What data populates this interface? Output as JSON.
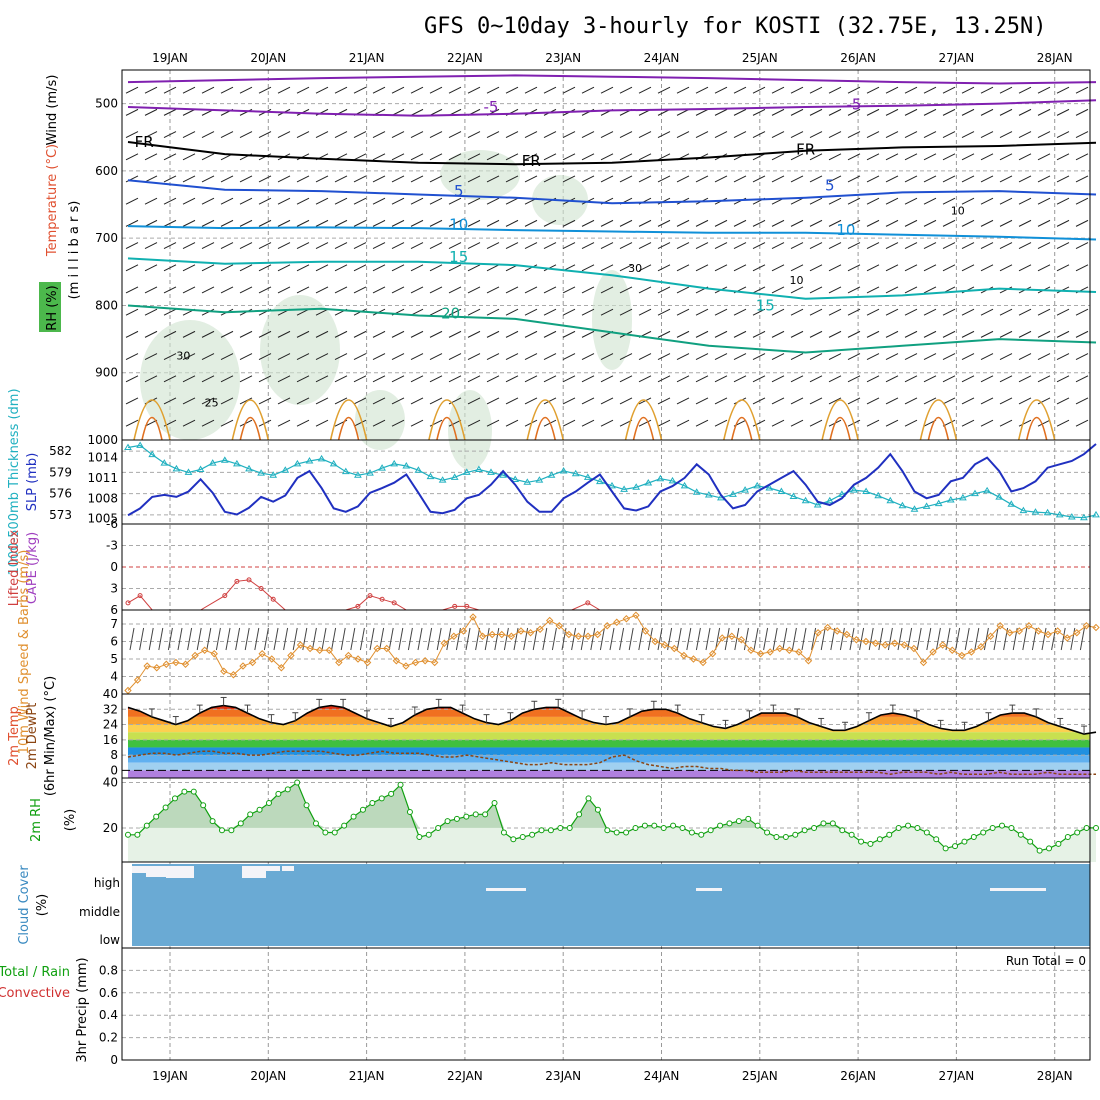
{
  "title": "GFS 0~10day 3-hourly for KOSTI (32.75E, 13.25N)",
  "chart_data": {
    "type": "line",
    "days": [
      "19JAN",
      "20JAN",
      "21JAN",
      "22JAN",
      "23JAN",
      "24JAN",
      "25JAN",
      "26JAN",
      "27JAN",
      "28JAN"
    ],
    "time_range_hours": [
      0,
      240
    ],
    "colors": {
      "wind_label": "#000000",
      "temp_label": "#e05030",
      "rh_label": "#10a010",
      "thickness": "#20b0c0",
      "slp": "#2030c0",
      "cape": "#a040c0",
      "lifted": "#d04040",
      "wind10": "#e09030",
      "temp2m": "#000000",
      "dewpt": "#8b4513",
      "rh2m": "#10a010",
      "cloud": "#6aaad4",
      "total_precip": "#10a010",
      "convective": "#d03030"
    },
    "upper": {
      "ylabel_wind": "Wind (m/s)",
      "ylabel_temp": "Temperature (°C)",
      "ylabel_rh": "RH (%)",
      "ylabel_units": "(m i l l i b a r s)",
      "yticks": [
        500,
        600,
        700,
        800,
        900,
        1000
      ],
      "ylim": [
        450,
        1000
      ],
      "isotherms": [
        {
          "label": "-5",
          "color": "#8020b0",
          "labels_at": [
            [
              90,
              505
            ],
            [
              180,
              501
            ]
          ],
          "values": [
            468,
            465,
            462,
            460,
            458,
            460,
            462,
            465,
            468,
            470,
            468
          ]
        },
        {
          "label": "-5",
          "color": "#8020b0",
          "labels_at": [],
          "values": [
            505,
            510,
            515,
            518,
            515,
            510,
            508,
            505,
            503,
            500,
            495
          ]
        },
        {
          "label": "FR",
          "color": "#000000",
          "labels_at": [
            [
              4,
              557
            ],
            [
              100,
              585
            ],
            [
              168,
              568
            ]
          ],
          "values": [
            557,
            575,
            582,
            588,
            590,
            588,
            580,
            570,
            565,
            563,
            558
          ]
        },
        {
          "label": "5",
          "color": "#2050d0",
          "labels_at": [
            [
              82,
              630
            ],
            [
              174,
              622
            ]
          ],
          "values": [
            614,
            628,
            630,
            635,
            640,
            648,
            645,
            640,
            632,
            630,
            635
          ]
        },
        {
          "label": "10",
          "color": "#1090d8",
          "labels_at": [
            [
              82,
              680
            ],
            [
              178,
              688
            ]
          ],
          "values": [
            682,
            685,
            684,
            685,
            688,
            690,
            692,
            692,
            695,
            698,
            702
          ]
        },
        {
          "label": "15",
          "color": "#10b0b0",
          "labels_at": [
            [
              82,
              728
            ],
            [
              158,
              800
            ]
          ],
          "values": [
            730,
            738,
            735,
            735,
            740,
            755,
            775,
            790,
            785,
            775,
            780
          ]
        },
        {
          "label": "20",
          "color": "#10a080",
          "labels_at": [
            [
              80,
              812
            ]
          ],
          "values": [
            800,
            810,
            805,
            815,
            820,
            840,
            860,
            870,
            860,
            850,
            855
          ]
        }
      ],
      "annotations": [
        {
          "text": "25",
          "color": "#e09020",
          "t": 19,
          "p": 950
        },
        {
          "text": "30",
          "color": "#909090",
          "t": 12,
          "p": 880
        },
        {
          "text": "30",
          "color": "#909090",
          "t": 124,
          "p": 750
        },
        {
          "text": "10",
          "color": "#909090",
          "t": 164,
          "p": 768
        },
        {
          "text": "10",
          "color": "#909090",
          "t": 204,
          "p": 665
        }
      ]
    },
    "thickness_slp": {
      "ylabel_thick": "1000-500mb Thickness (dm)",
      "ylabel_slp": "SLP (mb)",
      "thick_ticks": [
        "573",
        "576",
        "579",
        "582"
      ],
      "slp_ticks": [
        "1005",
        "1008",
        "1011",
        "1014"
      ],
      "thick_range": [
        572,
        583
      ],
      "slp_range": [
        1004.5,
        1016
      ],
      "thickness": [
        582.5,
        582.8,
        581.5,
        580.3,
        579.5,
        579.0,
        579.4,
        580.3,
        580.7,
        580.2,
        579.5,
        578.9,
        578.6,
        579.3,
        580.2,
        580.6,
        580.9,
        580.2,
        579.1,
        578.6,
        578.9,
        579.6,
        580.2,
        579.9,
        579.3,
        578.4,
        577.9,
        578.3,
        579.0,
        579.4,
        579.0,
        578.6,
        578.0,
        577.6,
        577.9,
        578.6,
        579.2,
        578.8,
        578.3,
        577.7,
        577.1,
        576.6,
        576.9,
        577.5,
        578.1,
        577.8,
        577.1,
        576.2,
        575.8,
        575.4,
        575.9,
        576.5,
        577.1,
        576.8,
        576.3,
        575.6,
        575.0,
        574.4,
        575.0,
        575.9,
        576.5,
        576.3,
        575.7,
        575.0,
        574.3,
        573.8,
        574.2,
        574.6,
        575.1,
        575.4,
        576.0,
        576.4,
        575.5,
        574.5,
        573.6,
        573.4,
        573.3,
        573.0,
        572.7,
        572.6,
        573.0
      ],
      "slp": [
        1005.5,
        1006.5,
        1008.2,
        1008.5,
        1008.2,
        1009.0,
        1010.8,
        1008.8,
        1006.0,
        1005.6,
        1006.6,
        1008.2,
        1007.5,
        1008.4,
        1011.0,
        1012.0,
        1009.5,
        1006.5,
        1006.0,
        1006.8,
        1008.8,
        1009.5,
        1010.3,
        1011.5,
        1008.8,
        1006.0,
        1005.8,
        1006.3,
        1008.0,
        1008.5,
        1010.0,
        1012.0,
        1010.0,
        1007.5,
        1006.0,
        1006.0,
        1008.0,
        1009.0,
        1010.3,
        1011.5,
        1009.0,
        1006.5,
        1006.2,
        1006.8,
        1009.0,
        1009.8,
        1011.0,
        1013.0,
        1011.5,
        1008.5,
        1006.5,
        1007.0,
        1009.0,
        1010.0,
        1011.0,
        1012.0,
        1010.0,
        1007.5,
        1007.0,
        1008.0,
        1010.0,
        1011.0,
        1012.5,
        1014.5,
        1012.0,
        1009.0,
        1008.0,
        1008.5,
        1010.5,
        1011.0,
        1013.0,
        1014.0,
        1012.0,
        1009.0,
        1009.5,
        1010.5,
        1012.5,
        1013.0,
        1013.5,
        1014.5,
        1016.0
      ]
    },
    "cape_li": {
      "ylabel_li": "Lifted Index",
      "ylabel_cape": "CAPE (J/kg)",
      "li_ticks": [
        "-6",
        "-3",
        "0",
        "3",
        "6"
      ],
      "li_range": [
        -6,
        6
      ],
      "lifted_index": [
        [
          0,
          5
        ],
        [
          3,
          4
        ],
        [
          6,
          6
        ],
        [
          12,
          6
        ],
        [
          18,
          6
        ],
        [
          24,
          4
        ],
        [
          27,
          2
        ],
        [
          30,
          1.8
        ],
        [
          33,
          3
        ],
        [
          36,
          4.5
        ],
        [
          39,
          6
        ],
        [
          48,
          6
        ],
        [
          54,
          6
        ],
        [
          57,
          5.5
        ],
        [
          60,
          4
        ],
        [
          63,
          4.5
        ],
        [
          66,
          5
        ],
        [
          69,
          6
        ],
        [
          72,
          6
        ],
        [
          78,
          6
        ],
        [
          81,
          5.5
        ],
        [
          84,
          5.5
        ],
        [
          87,
          6
        ],
        [
          96,
          6
        ],
        [
          110,
          6
        ],
        [
          114,
          5
        ],
        [
          117,
          6
        ],
        [
          150,
          6
        ]
      ]
    },
    "wind10m": {
      "ylabel": "10m Wind Speed & Barbs (m/s)",
      "yticks": [
        "4",
        "5",
        "6",
        "7"
      ],
      "ylim": [
        3,
        7.8
      ],
      "speed": [
        3.2,
        3.8,
        4.6,
        4.5,
        4.7,
        4.8,
        4.7,
        5.2,
        5.5,
        5.3,
        4.3,
        4.1,
        4.6,
        4.8,
        5.3,
        5.0,
        4.5,
        5.2,
        5.8,
        5.6,
        5.5,
        5.5,
        4.8,
        5.2,
        5.0,
        4.8,
        5.6,
        5.6,
        4.9,
        4.6,
        4.8,
        4.9,
        4.8,
        5.9,
        6.3,
        6.6,
        7.4,
        6.3,
        6.4,
        6.4,
        6.3,
        6.6,
        6.5,
        6.7,
        7.2,
        6.9,
        6.4,
        6.3,
        6.3,
        6.4,
        6.9,
        7.1,
        7.3,
        7.5,
        6.6,
        6.0,
        5.8,
        5.6,
        5.2,
        5.0,
        4.8,
        5.3,
        6.2,
        6.3,
        6.1,
        5.5,
        5.3,
        5.4,
        5.6,
        5.5,
        5.4,
        4.9,
        6.5,
        6.8,
        6.6,
        6.4,
        6.1,
        6.0,
        5.9,
        5.8,
        5.9,
        5.8,
        5.6,
        4.8,
        5.4,
        5.8,
        5.5,
        5.2,
        5.4,
        5.7,
        6.3,
        6.9,
        6.5,
        6.6,
        6.9,
        6.6,
        6.4,
        6.6,
        6.2,
        6.5,
        6.9,
        6.8
      ]
    },
    "temp2m": {
      "ylabel_temp": "2m Temp",
      "ylabel_dew": "2m DewPt",
      "ylabel_minmax": "(6hr Min/Max) (°C)",
      "yticks": [
        "0",
        "8",
        "16",
        "24",
        "32",
        "40"
      ],
      "ylim": [
        -4,
        40
      ],
      "temp": [
        33,
        31,
        28,
        26,
        24,
        26,
        30,
        33,
        34,
        33,
        30,
        27,
        25,
        24,
        26,
        30,
        33,
        34,
        33,
        30,
        27,
        25,
        23,
        25,
        29,
        32,
        33,
        33,
        30,
        27,
        25,
        24,
        26,
        30,
        32,
        33,
        33,
        30,
        27,
        25,
        24,
        25,
        28,
        31,
        32,
        32,
        30,
        27,
        25,
        23,
        22,
        24,
        27,
        30,
        30,
        30,
        28,
        25,
        23,
        21,
        21,
        23,
        26,
        29,
        30,
        29,
        27,
        24,
        22,
        21,
        21,
        23,
        26,
        29,
        30,
        30,
        28,
        25,
        23,
        21,
        19,
        20
      ],
      "dewpt": [
        7,
        8,
        9,
        9,
        8,
        9,
        10,
        10,
        9,
        9,
        8,
        8,
        9,
        10,
        10,
        10,
        10,
        9,
        8,
        8,
        9,
        10,
        9,
        9,
        9,
        8,
        7,
        7,
        8,
        7,
        6,
        5,
        4,
        3,
        3,
        4,
        3,
        3,
        3,
        4,
        7,
        8,
        5,
        3,
        2,
        1,
        2,
        2,
        1,
        1,
        0,
        0,
        -1,
        -1,
        -1,
        0,
        -1,
        -1,
        -1,
        -1,
        -1,
        -1,
        -1,
        -2,
        -1,
        -1,
        -1,
        -2,
        -1,
        -2,
        -2,
        -2,
        -1,
        -2,
        -2,
        -2,
        -1,
        -2,
        -2,
        -2,
        -2
      ]
    },
    "rh2m": {
      "ylabel": "2m RH",
      "ylabel_units": "(%)",
      "yticks": [
        "20",
        "40"
      ],
      "ylim": [
        5,
        42
      ],
      "values": [
        17,
        17,
        21,
        25,
        29,
        33,
        36,
        36,
        30,
        23,
        19,
        19,
        22,
        26,
        28,
        31,
        35,
        37,
        40,
        30,
        22,
        18,
        18,
        21,
        25,
        28,
        31,
        33,
        35,
        39,
        27,
        16,
        17,
        20,
        23,
        24,
        25,
        26,
        26,
        31,
        18,
        15,
        16,
        17,
        19,
        19,
        20,
        20,
        26,
        33,
        28,
        19,
        18,
        18,
        20,
        21,
        21,
        20,
        21,
        20,
        18,
        17,
        19,
        21,
        22,
        23,
        24,
        21,
        18,
        16,
        16,
        17,
        19,
        20,
        22,
        22,
        19,
        17,
        14,
        13,
        15,
        17,
        20,
        21,
        20,
        18,
        15,
        11,
        12,
        14,
        16,
        18,
        20,
        21,
        20,
        17,
        14,
        10,
        11,
        13,
        16,
        18,
        20,
        20
      ]
    },
    "cloud": {
      "ylabel": "Cloud Cover",
      "ylabel_units": "(%)",
      "levels": [
        "high",
        "middle",
        "low"
      ]
    },
    "precip": {
      "ylabel_total": "Total / Rain",
      "ylabel_conv": "Convective",
      "ylabel": "3hr Precip (mm)",
      "yticks": [
        "0",
        "0.2",
        "0.4",
        "0.6",
        "0.8"
      ],
      "ylim": [
        0,
        1
      ],
      "run_total_label": "Run Total = 0",
      "values": []
    }
  }
}
